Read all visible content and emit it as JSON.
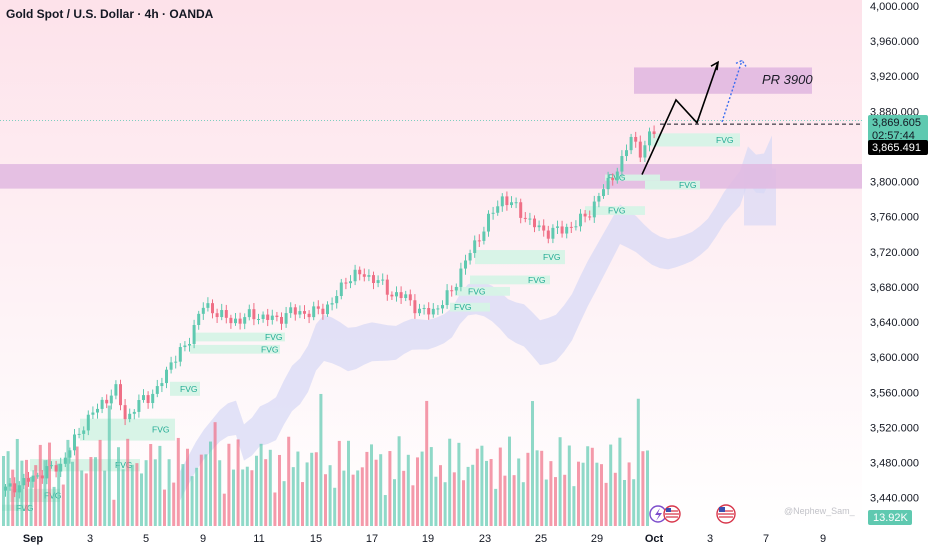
{
  "header": {
    "title": "Gold Spot / U.S. Dollar · 4h · OANDA"
  },
  "colors": {
    "background": "#fdeef2",
    "bull": "#5fc9b0",
    "bear": "#ef6f86",
    "zone": "#e1b8e0",
    "cloud": "#d8d9f5",
    "fvg": "#d6f3e6",
    "fvg_text": "#22ab94"
  },
  "chart_data": {
    "type": "candlestick",
    "title": "Gold Spot / U.S. Dollar · 4h · OANDA",
    "ylim": [
      3420,
      4010
    ],
    "y_ticks": [
      "4,000.000",
      "3,960.000",
      "3,920.000",
      "3,880.000",
      "3,800.000",
      "3,760.000",
      "3,720.000",
      "3,680.000",
      "3,640.000",
      "3,600.000",
      "3,560.000",
      "3,520.000",
      "3,480.000",
      "3,440.000"
    ],
    "x_ticks": [
      "Sep",
      "3",
      "5",
      "9",
      "11",
      "15",
      "17",
      "19",
      "23",
      "25",
      "29",
      "Oct",
      "3",
      "7",
      "9"
    ],
    "price_path": [
      [
        0,
        3448
      ],
      [
        20,
        3456
      ],
      [
        40,
        3468
      ],
      [
        60,
        3478
      ],
      [
        80,
        3520
      ],
      [
        100,
        3548
      ],
      [
        115,
        3562
      ],
      [
        125,
        3528
      ],
      [
        140,
        3552
      ],
      [
        155,
        3560
      ],
      [
        170,
        3596
      ],
      [
        185,
        3612
      ],
      [
        200,
        3658
      ],
      [
        215,
        3652
      ],
      [
        230,
        3640
      ],
      [
        250,
        3648
      ],
      [
        275,
        3643
      ],
      [
        290,
        3652
      ],
      [
        310,
        3650
      ],
      [
        330,
        3660
      ],
      [
        345,
        3690
      ],
      [
        360,
        3695
      ],
      [
        375,
        3688
      ],
      [
        390,
        3672
      ],
      [
        405,
        3668
      ],
      [
        420,
        3650
      ],
      [
        435,
        3655
      ],
      [
        450,
        3675
      ],
      [
        465,
        3712
      ],
      [
        480,
        3742
      ],
      [
        500,
        3782
      ],
      [
        515,
        3770
      ],
      [
        530,
        3752
      ],
      [
        545,
        3742
      ],
      [
        560,
        3745
      ],
      [
        575,
        3752
      ],
      [
        590,
        3768
      ],
      [
        605,
        3798
      ],
      [
        620,
        3820
      ],
      [
        630,
        3855
      ],
      [
        640,
        3828
      ],
      [
        650,
        3858
      ],
      [
        658,
        3868
      ]
    ],
    "last_price": "3,869.605",
    "countdown": "02:57:44",
    "prev_price": "3,865.491",
    "volume_value": "13.92K",
    "annotations": {
      "target_label": "PR 3900",
      "fvg_label": "FVG",
      "demand_zone": [
        3792,
        3820
      ],
      "target_zone": [
        3900,
        3930
      ],
      "projection": [
        [
          642,
          3808
        ],
        [
          676,
          3893
        ],
        [
          697,
          3867
        ],
        [
          718,
          3936
        ]
      ],
      "projection_alt": [
        [
          722,
          3868
        ],
        [
          742,
          3938
        ]
      ],
      "fvg_zones": [
        {
          "x": [
            605,
            660
          ],
          "y": [
            3801,
            3808
          ],
          "label_x": 608
        },
        {
          "x": [
            650,
            740
          ],
          "y": [
            3840,
            3855
          ],
          "label_x": 716
        },
        {
          "x": [
            645,
            700
          ],
          "y": [
            3791,
            3801
          ],
          "label_x": 679
        },
        {
          "x": [
            585,
            645
          ],
          "y": [
            3762,
            3772
          ],
          "label_x": 608
        },
        {
          "x": [
            475,
            565
          ],
          "y": [
            3706,
            3722
          ],
          "label_x": 543
        },
        {
          "x": [
            470,
            550
          ],
          "y": [
            3683,
            3693
          ],
          "label_x": 528
        },
        {
          "x": [
            455,
            510
          ],
          "y": [
            3670,
            3680
          ],
          "label_x": 468
        },
        {
          "x": [
            450,
            490
          ],
          "y": [
            3652,
            3662
          ],
          "label_x": 454
        },
        {
          "x": [
            190,
            280
          ],
          "y": [
            3604,
            3614
          ],
          "label_x": 261
        },
        {
          "x": [
            195,
            285
          ],
          "y": [
            3618,
            3628
          ],
          "label_x": 265
        },
        {
          "x": [
            170,
            200
          ],
          "y": [
            3556,
            3572
          ],
          "label_x": 180
        },
        {
          "x": [
            80,
            175
          ],
          "y": [
            3505,
            3530
          ],
          "label_x": 152
        },
        {
          "x": [
            30,
            140
          ],
          "y": [
            3470,
            3484
          ],
          "label_x": 115
        },
        {
          "x": [
            10,
            60
          ],
          "y": [
            3435,
            3450
          ],
          "label_x": 44
        },
        {
          "x": [
            2,
            30
          ],
          "y": [
            3425,
            3432
          ],
          "label_x": 16
        }
      ]
    }
  },
  "watermark": "@Nephew_Sam_"
}
